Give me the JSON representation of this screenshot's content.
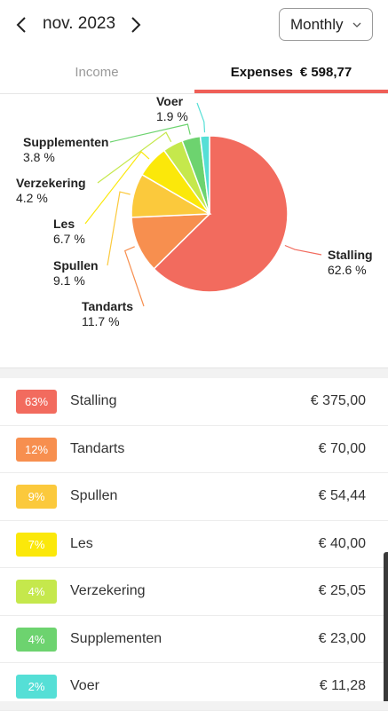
{
  "header": {
    "month": "nov. 2023",
    "period": "Monthly"
  },
  "tabs": {
    "income": "Income",
    "expenses": "Expenses",
    "expenses_total": "€ 598,77"
  },
  "colors": {
    "accent": "#ef5f57"
  },
  "chart_data": {
    "type": "pie",
    "slices": [
      {
        "label": "Stalling",
        "percent_label": "62.6 %",
        "value": 62.6,
        "color": "#f26b5e"
      },
      {
        "label": "Tandarts",
        "percent_label": "11.7 %",
        "value": 11.7,
        "color": "#f78f4f"
      },
      {
        "label": "Spullen",
        "percent_label": "9.1 %",
        "value": 9.1,
        "color": "#fbc93c"
      },
      {
        "label": "Les",
        "percent_label": "6.7 %",
        "value": 6.7,
        "color": "#fbe80a"
      },
      {
        "label": "Verzekering",
        "percent_label": "4.2 %",
        "value": 4.2,
        "color": "#c5e84c"
      },
      {
        "label": "Supplementen",
        "percent_label": "3.8 %",
        "value": 3.8,
        "color": "#6dd36f"
      },
      {
        "label": "Voer",
        "percent_label": "1.9 %",
        "value": 1.9,
        "color": "#55dfd6"
      }
    ]
  },
  "list": [
    {
      "badge": "63%",
      "name": "Stalling",
      "amount": "€ 375,00",
      "color": "#f26b5e"
    },
    {
      "badge": "12%",
      "name": "Tandarts",
      "amount": "€ 70,00",
      "color": "#f78f4f"
    },
    {
      "badge": "9%",
      "name": "Spullen",
      "amount": "€ 54,44",
      "color": "#fbc93c"
    },
    {
      "badge": "7%",
      "name": "Les",
      "amount": "€ 40,00",
      "color": "#fbe80a"
    },
    {
      "badge": "4%",
      "name": "Verzekering",
      "amount": "€ 25,05",
      "color": "#c5e84c"
    },
    {
      "badge": "4%",
      "name": "Supplementen",
      "amount": "€ 23,00",
      "color": "#6dd36f"
    },
    {
      "badge": "2%",
      "name": "Voer",
      "amount": "€ 11,28",
      "color": "#55dfd6"
    }
  ]
}
